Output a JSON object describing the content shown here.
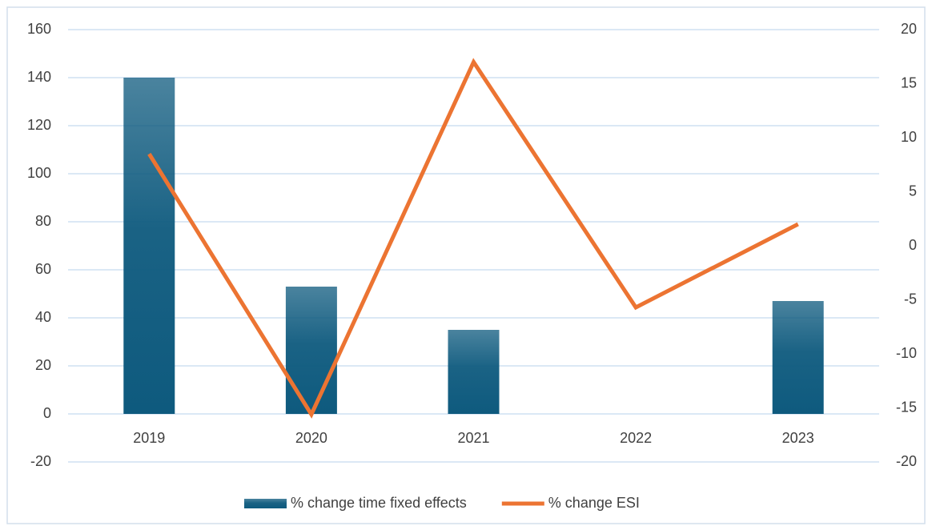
{
  "chart_data": {
    "type": "bar-line",
    "categories": [
      "2019",
      "2020",
      "2021",
      "2022",
      "2023"
    ],
    "series": [
      {
        "name": "% change time fixed effects",
        "type": "bar",
        "color": "#0e5a7e",
        "values": [
          140,
          53,
          35,
          0,
          47
        ]
      },
      {
        "name": "% change ESI",
        "type": "line",
        "axis": "y2",
        "color": "#ec7432",
        "values": [
          8.5,
          -15.6,
          17,
          -5.7,
          2
        ]
      }
    ],
    "ylim": [
      -20,
      160
    ],
    "yticks": [
      -20,
      0,
      20,
      40,
      60,
      80,
      100,
      120,
      140,
      160
    ],
    "y2lim": [
      -20,
      20
    ],
    "y2ticks": [
      -20,
      -15,
      -10,
      -5,
      0,
      5,
      10,
      15,
      20
    ],
    "grid": true,
    "legend": "bottom"
  }
}
